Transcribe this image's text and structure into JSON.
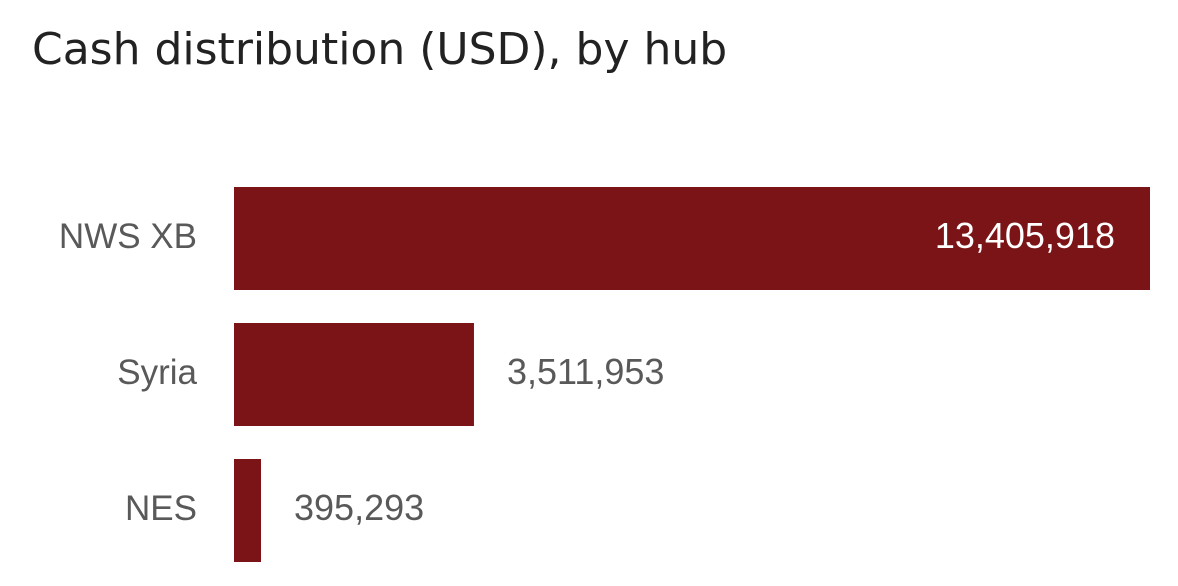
{
  "chart_data": {
    "type": "bar",
    "orientation": "horizontal",
    "title": "Cash distribution (USD), by hub",
    "categories": [
      "NWS XB",
      "Syria",
      "NES"
    ],
    "values": [
      13405918,
      3511953,
      395293
    ],
    "value_labels": [
      "13,405,918",
      "3,511,953",
      "395,293"
    ],
    "color": "#7b1416"
  }
}
